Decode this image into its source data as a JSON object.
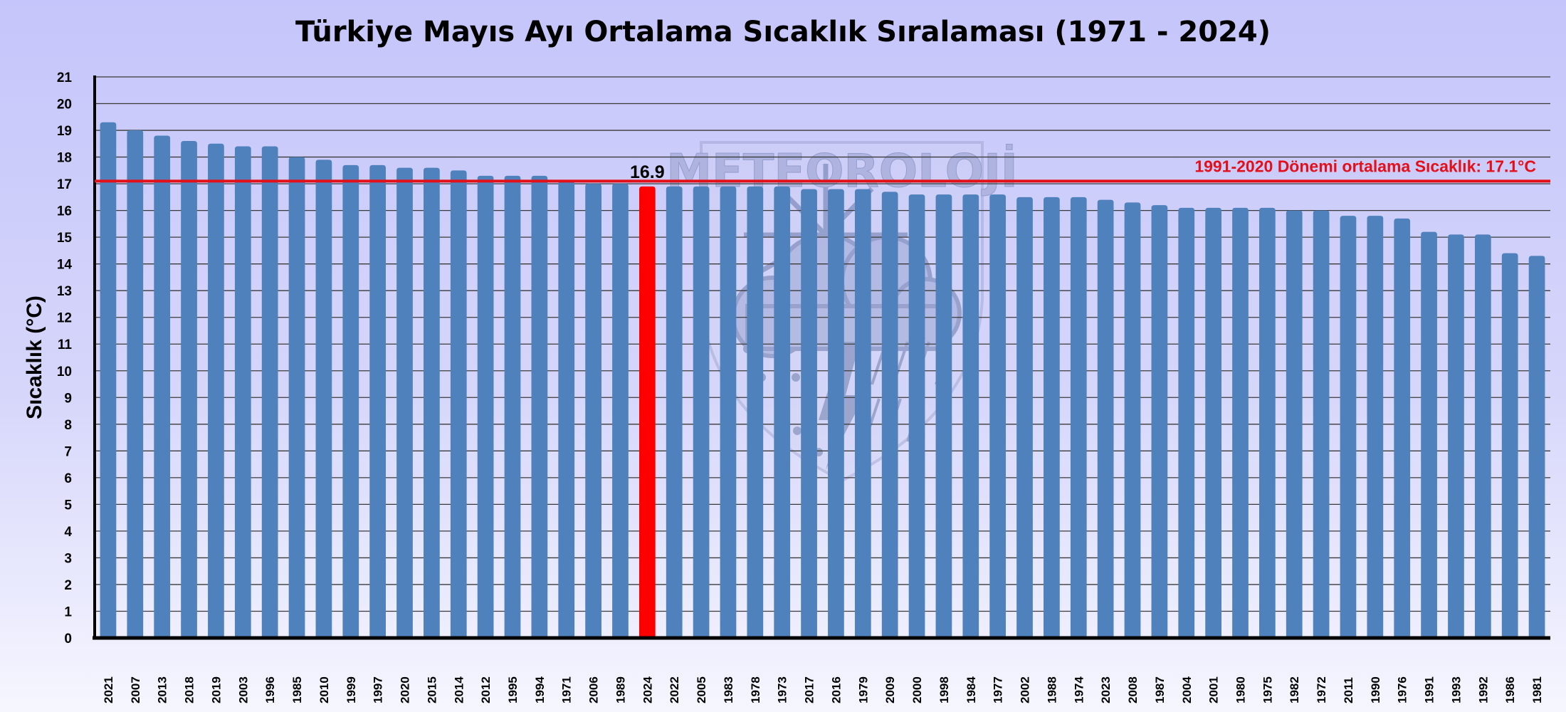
{
  "chart_data": {
    "type": "bar",
    "title": "Türkiye Mayıs Ayı Ortalama Sıcaklık Sıralaması (1971 - 2024)",
    "ylabel": "Sıcaklık (°C)",
    "xlabel": "",
    "ylim": [
      0,
      21
    ],
    "yticks": [
      0,
      1,
      2,
      3,
      4,
      5,
      6,
      7,
      8,
      9,
      10,
      11,
      12,
      13,
      14,
      15,
      16,
      17,
      18,
      19,
      20,
      21
    ],
    "grid": true,
    "categories": [
      "2021",
      "2007",
      "2013",
      "2018",
      "2019",
      "2003",
      "1996",
      "1985",
      "2010",
      "1999",
      "1997",
      "2020",
      "2015",
      "2014",
      "2012",
      "1995",
      "1994",
      "1971",
      "2006",
      "1989",
      "2024",
      "2022",
      "2005",
      "1983",
      "1978",
      "1973",
      "2017",
      "2016",
      "1979",
      "2009",
      "2000",
      "1998",
      "1984",
      "1977",
      "2002",
      "1988",
      "1974",
      "2023",
      "2008",
      "1987",
      "2004",
      "2001",
      "1980",
      "1975",
      "1982",
      "1972",
      "2011",
      "1990",
      "1976",
      "1991",
      "1993",
      "1992",
      "1986",
      "1981"
    ],
    "values": [
      19.3,
      19.0,
      18.8,
      18.6,
      18.5,
      18.4,
      18.4,
      18.0,
      17.9,
      17.7,
      17.7,
      17.6,
      17.6,
      17.5,
      17.3,
      17.3,
      17.3,
      17.1,
      17.0,
      17.0,
      16.9,
      16.9,
      16.9,
      16.9,
      16.9,
      16.9,
      16.8,
      16.8,
      16.8,
      16.7,
      16.6,
      16.6,
      16.6,
      16.6,
      16.5,
      16.5,
      16.5,
      16.4,
      16.3,
      16.2,
      16.1,
      16.1,
      16.1,
      16.1,
      16.0,
      16.0,
      15.8,
      15.8,
      15.7,
      15.2,
      15.1,
      15.1,
      14.4,
      14.3
    ],
    "highlight": {
      "category": "2024",
      "color": "#ff0000",
      "label": "16.9"
    },
    "bar_color": "#4f81bd",
    "reference_line": {
      "value": 17.1,
      "label": "1991-2020 Dönemi ortalama Sıcaklık: 17.1°C",
      "color": "#e3101a"
    },
    "watermark": {
      "text": "METEOROLOJİ",
      "icon": "sun-cloud-rain-shield-icon"
    }
  }
}
